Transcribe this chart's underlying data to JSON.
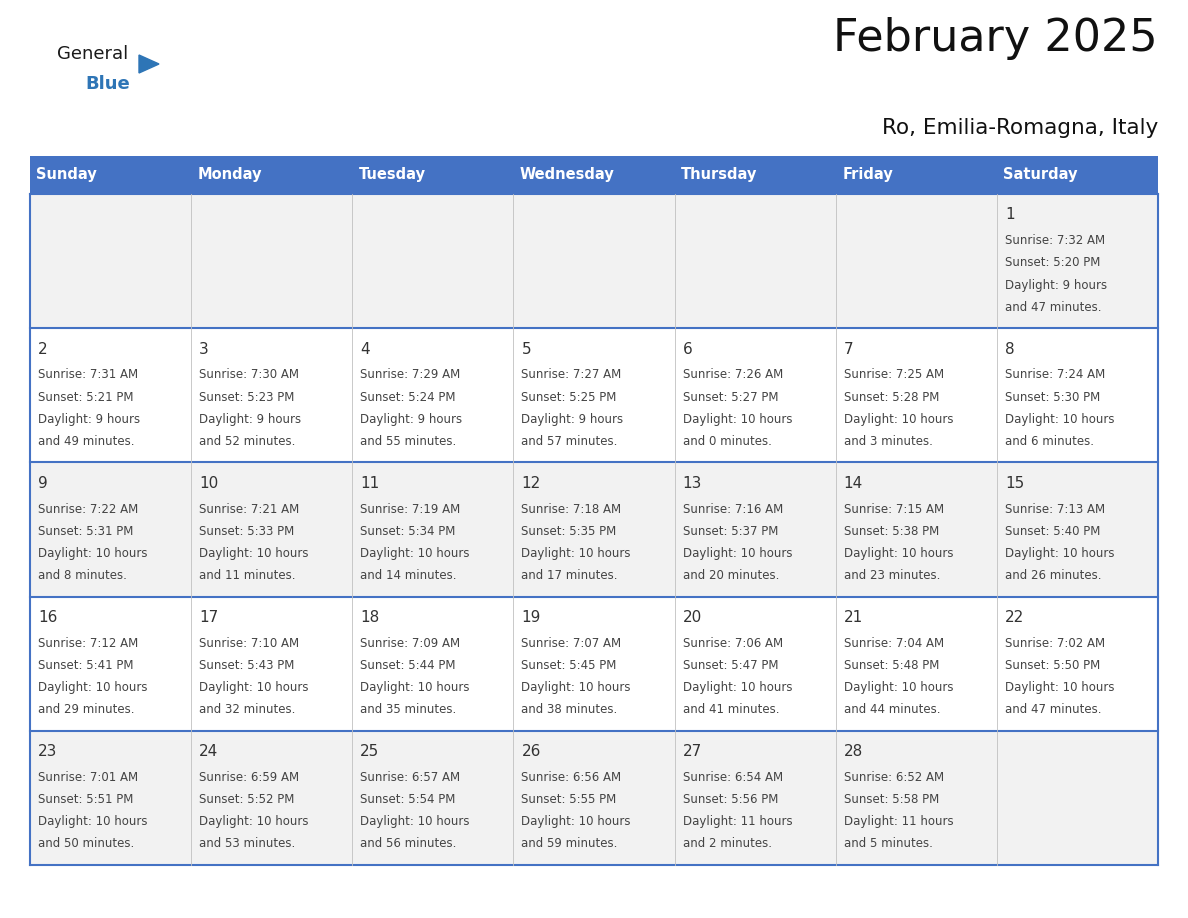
{
  "title": "February 2025",
  "subtitle": "Ro, Emilia-Romagna, Italy",
  "header_bg": "#4472C4",
  "header_text": "#FFFFFF",
  "header_days": [
    "Sunday",
    "Monday",
    "Tuesday",
    "Wednesday",
    "Thursday",
    "Friday",
    "Saturday"
  ],
  "row_bg": [
    "#F2F2F2",
    "#FFFFFF",
    "#F2F2F2",
    "#FFFFFF",
    "#F2F2F2"
  ],
  "border_color": "#4472C4",
  "day_number_color": "#333333",
  "text_color": "#444444",
  "days": [
    {
      "day": 1,
      "col": 6,
      "row": 0,
      "sunrise": "7:32 AM",
      "sunset": "5:20 PM",
      "daylight": "9 hours and 47 minutes"
    },
    {
      "day": 2,
      "col": 0,
      "row": 1,
      "sunrise": "7:31 AM",
      "sunset": "5:21 PM",
      "daylight": "9 hours and 49 minutes"
    },
    {
      "day": 3,
      "col": 1,
      "row": 1,
      "sunrise": "7:30 AM",
      "sunset": "5:23 PM",
      "daylight": "9 hours and 52 minutes"
    },
    {
      "day": 4,
      "col": 2,
      "row": 1,
      "sunrise": "7:29 AM",
      "sunset": "5:24 PM",
      "daylight": "9 hours and 55 minutes"
    },
    {
      "day": 5,
      "col": 3,
      "row": 1,
      "sunrise": "7:27 AM",
      "sunset": "5:25 PM",
      "daylight": "9 hours and 57 minutes"
    },
    {
      "day": 6,
      "col": 4,
      "row": 1,
      "sunrise": "7:26 AM",
      "sunset": "5:27 PM",
      "daylight": "10 hours and 0 minutes"
    },
    {
      "day": 7,
      "col": 5,
      "row": 1,
      "sunrise": "7:25 AM",
      "sunset": "5:28 PM",
      "daylight": "10 hours and 3 minutes"
    },
    {
      "day": 8,
      "col": 6,
      "row": 1,
      "sunrise": "7:24 AM",
      "sunset": "5:30 PM",
      "daylight": "10 hours and 6 minutes"
    },
    {
      "day": 9,
      "col": 0,
      "row": 2,
      "sunrise": "7:22 AM",
      "sunset": "5:31 PM",
      "daylight": "10 hours and 8 minutes"
    },
    {
      "day": 10,
      "col": 1,
      "row": 2,
      "sunrise": "7:21 AM",
      "sunset": "5:33 PM",
      "daylight": "10 hours and 11 minutes"
    },
    {
      "day": 11,
      "col": 2,
      "row": 2,
      "sunrise": "7:19 AM",
      "sunset": "5:34 PM",
      "daylight": "10 hours and 14 minutes"
    },
    {
      "day": 12,
      "col": 3,
      "row": 2,
      "sunrise": "7:18 AM",
      "sunset": "5:35 PM",
      "daylight": "10 hours and 17 minutes"
    },
    {
      "day": 13,
      "col": 4,
      "row": 2,
      "sunrise": "7:16 AM",
      "sunset": "5:37 PM",
      "daylight": "10 hours and 20 minutes"
    },
    {
      "day": 14,
      "col": 5,
      "row": 2,
      "sunrise": "7:15 AM",
      "sunset": "5:38 PM",
      "daylight": "10 hours and 23 minutes"
    },
    {
      "day": 15,
      "col": 6,
      "row": 2,
      "sunrise": "7:13 AM",
      "sunset": "5:40 PM",
      "daylight": "10 hours and 26 minutes"
    },
    {
      "day": 16,
      "col": 0,
      "row": 3,
      "sunrise": "7:12 AM",
      "sunset": "5:41 PM",
      "daylight": "10 hours and 29 minutes"
    },
    {
      "day": 17,
      "col": 1,
      "row": 3,
      "sunrise": "7:10 AM",
      "sunset": "5:43 PM",
      "daylight": "10 hours and 32 minutes"
    },
    {
      "day": 18,
      "col": 2,
      "row": 3,
      "sunrise": "7:09 AM",
      "sunset": "5:44 PM",
      "daylight": "10 hours and 35 minutes"
    },
    {
      "day": 19,
      "col": 3,
      "row": 3,
      "sunrise": "7:07 AM",
      "sunset": "5:45 PM",
      "daylight": "10 hours and 38 minutes"
    },
    {
      "day": 20,
      "col": 4,
      "row": 3,
      "sunrise": "7:06 AM",
      "sunset": "5:47 PM",
      "daylight": "10 hours and 41 minutes"
    },
    {
      "day": 21,
      "col": 5,
      "row": 3,
      "sunrise": "7:04 AM",
      "sunset": "5:48 PM",
      "daylight": "10 hours and 44 minutes"
    },
    {
      "day": 22,
      "col": 6,
      "row": 3,
      "sunrise": "7:02 AM",
      "sunset": "5:50 PM",
      "daylight": "10 hours and 47 minutes"
    },
    {
      "day": 23,
      "col": 0,
      "row": 4,
      "sunrise": "7:01 AM",
      "sunset": "5:51 PM",
      "daylight": "10 hours and 50 minutes"
    },
    {
      "day": 24,
      "col": 1,
      "row": 4,
      "sunrise": "6:59 AM",
      "sunset": "5:52 PM",
      "daylight": "10 hours and 53 minutes"
    },
    {
      "day": 25,
      "col": 2,
      "row": 4,
      "sunrise": "6:57 AM",
      "sunset": "5:54 PM",
      "daylight": "10 hours and 56 minutes"
    },
    {
      "day": 26,
      "col": 3,
      "row": 4,
      "sunrise": "6:56 AM",
      "sunset": "5:55 PM",
      "daylight": "10 hours and 59 minutes"
    },
    {
      "day": 27,
      "col": 4,
      "row": 4,
      "sunrise": "6:54 AM",
      "sunset": "5:56 PM",
      "daylight": "11 hours and 2 minutes"
    },
    {
      "day": 28,
      "col": 5,
      "row": 4,
      "sunrise": "6:52 AM",
      "sunset": "5:58 PM",
      "daylight": "11 hours and 5 minutes"
    }
  ],
  "logo_general_color": "#1a1a1a",
  "logo_blue_color": "#2E75B6",
  "logo_triangle_color": "#2E75B6"
}
